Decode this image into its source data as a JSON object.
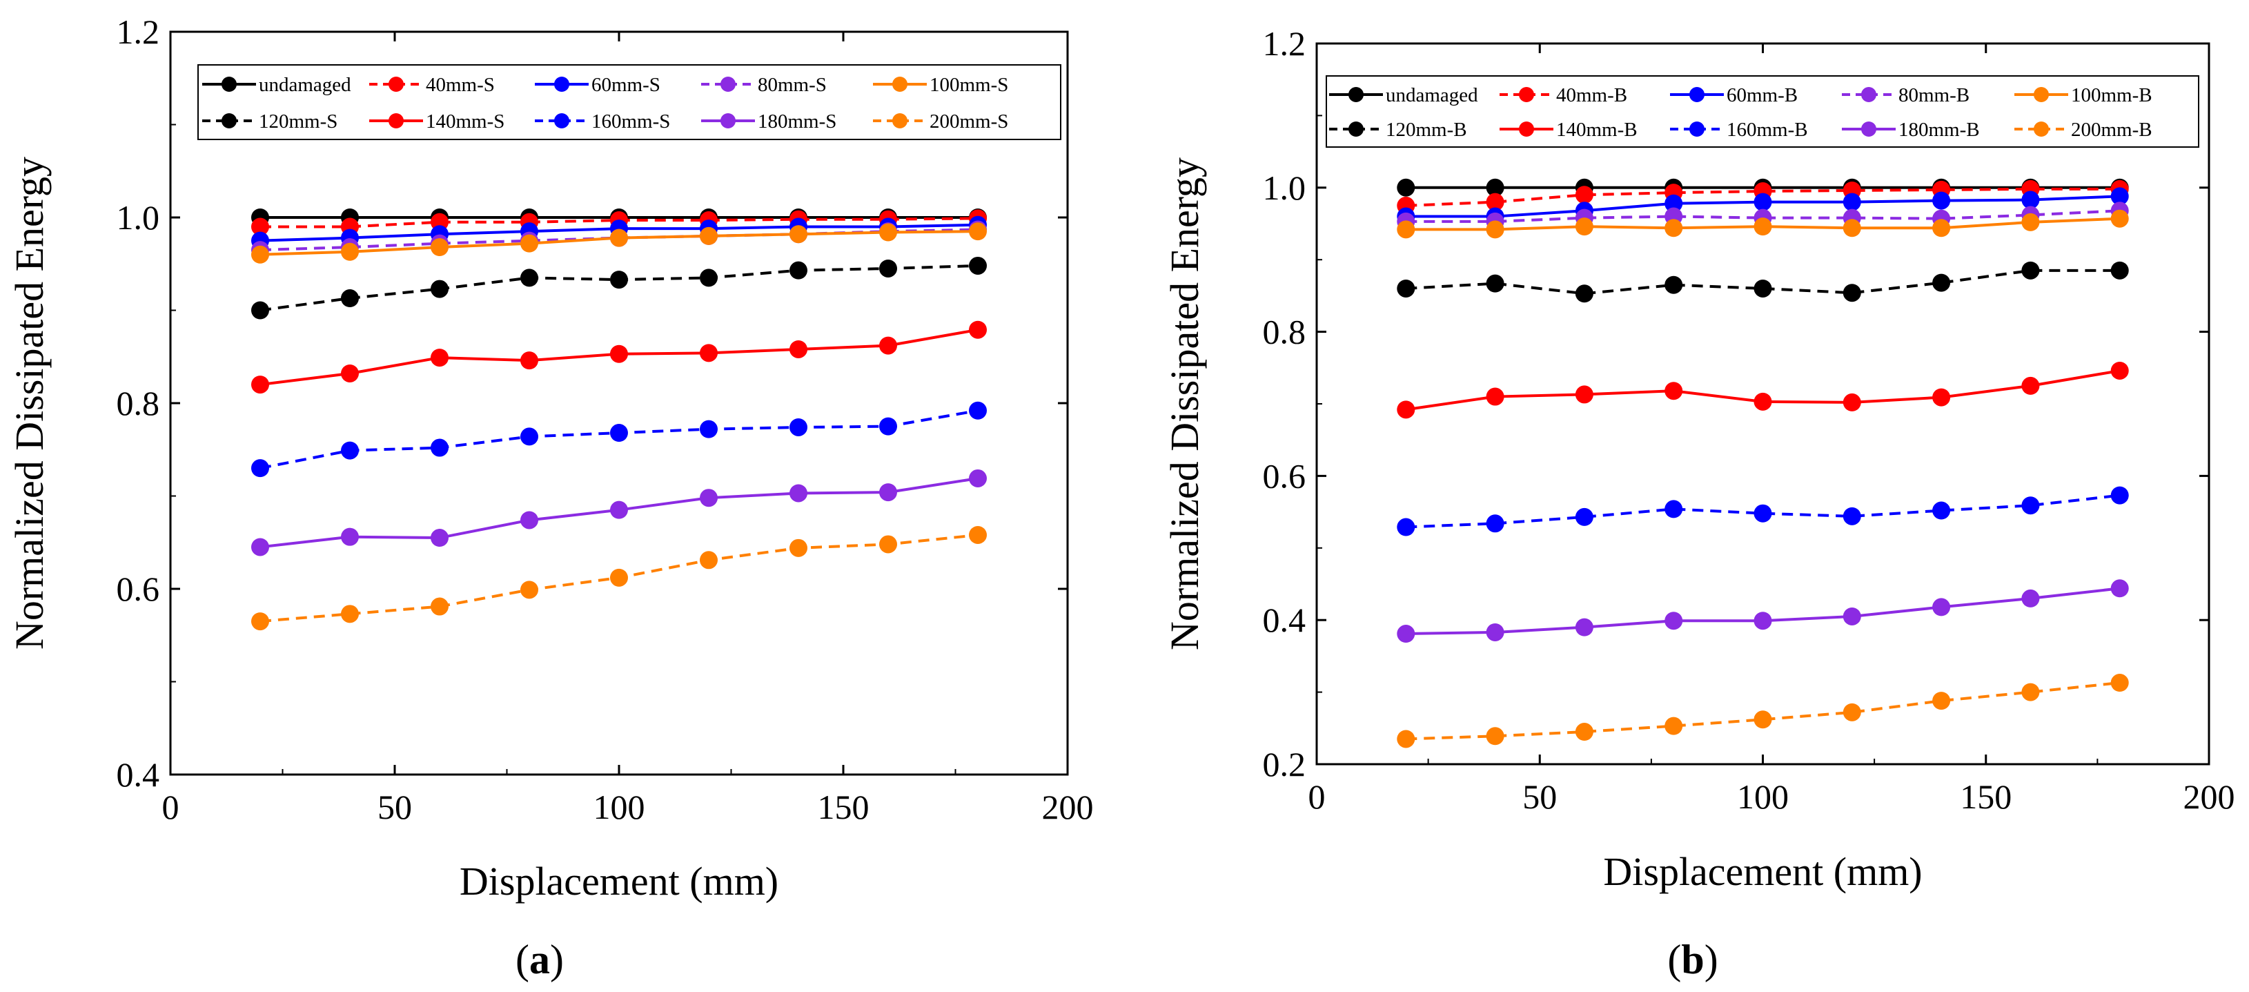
{
  "chart_data": [
    {
      "type": "line",
      "panel_label": {
        "open": "(",
        "letter": "a",
        "close": ")"
      },
      "title": "",
      "xlabel": "Displacement (mm)",
      "ylabel": "Normalized Dissipated Energy",
      "xlim": [
        0,
        200
      ],
      "ylim": [
        0.4,
        1.2
      ],
      "x_tick_labels": [
        "0",
        "50",
        "100",
        "150",
        "200"
      ],
      "y_tick_labels": [
        "0.4",
        "0.6",
        "0.8",
        "1.0",
        "1.2"
      ],
      "x": [
        20,
        40,
        60,
        80,
        100,
        120,
        140,
        160,
        180
      ],
      "legend_position": "top",
      "series": [
        {
          "name": "undamaged",
          "color": "#000000",
          "dash": "solid",
          "values": [
            1.0,
            1.0,
            1.0,
            1.0,
            1.0,
            1.0,
            1.0,
            1.0,
            1.0
          ]
        },
        {
          "name": "40mm-S",
          "color": "#ff0000",
          "dash": "dashed",
          "values": [
            0.99,
            0.99,
            0.995,
            0.995,
            0.997,
            0.997,
            0.998,
            0.998,
            0.999
          ]
        },
        {
          "name": "60mm-S",
          "color": "#0000ff",
          "dash": "solid",
          "values": [
            0.975,
            0.978,
            0.982,
            0.985,
            0.988,
            0.988,
            0.99,
            0.99,
            0.992
          ]
        },
        {
          "name": "80mm-S",
          "color": "#8b2be2",
          "dash": "dashed",
          "values": [
            0.965,
            0.968,
            0.972,
            0.975,
            0.978,
            0.98,
            0.982,
            0.985,
            0.987
          ]
        },
        {
          "name": "100mm-S",
          "color": "#ff8000",
          "dash": "solid",
          "values": [
            0.96,
            0.963,
            0.968,
            0.972,
            0.978,
            0.98,
            0.982,
            0.984,
            0.985
          ]
        },
        {
          "name": "120mm-S",
          "color": "#000000",
          "dash": "dashed",
          "values": [
            0.9,
            0.913,
            0.923,
            0.935,
            0.933,
            0.935,
            0.943,
            0.945,
            0.948
          ]
        },
        {
          "name": "140mm-S",
          "color": "#ff0000",
          "dash": "solid",
          "values": [
            0.82,
            0.832,
            0.849,
            0.846,
            0.853,
            0.854,
            0.858,
            0.862,
            0.879
          ]
        },
        {
          "name": "160mm-S",
          "color": "#0000ff",
          "dash": "dashed",
          "values": [
            0.73,
            0.749,
            0.752,
            0.764,
            0.768,
            0.772,
            0.774,
            0.775,
            0.792
          ]
        },
        {
          "name": "180mm-S",
          "color": "#8b2be2",
          "dash": "solid",
          "values": [
            0.645,
            0.656,
            0.655,
            0.674,
            0.685,
            0.698,
            0.703,
            0.704,
            0.719
          ]
        },
        {
          "name": "200mm-S",
          "color": "#ff8000",
          "dash": "dashed",
          "values": [
            0.565,
            0.573,
            0.581,
            0.599,
            0.612,
            0.631,
            0.644,
            0.648,
            0.658
          ]
        }
      ]
    },
    {
      "type": "line",
      "panel_label": {
        "open": "(",
        "letter": "b",
        "close": ")"
      },
      "title": "",
      "xlabel": "Displacement (mm)",
      "ylabel": "Normalized Dissipated Energy",
      "xlim": [
        0,
        200
      ],
      "ylim": [
        0.2,
        1.2
      ],
      "x_tick_labels": [
        "0",
        "50",
        "100",
        "150",
        "200"
      ],
      "y_tick_labels": [
        "0.2",
        "0.4",
        "0.6",
        "0.8",
        "1.0",
        "1.2"
      ],
      "x": [
        20,
        40,
        60,
        80,
        100,
        120,
        140,
        160,
        180
      ],
      "legend_position": "top",
      "series": [
        {
          "name": "undamaged",
          "color": "#000000",
          "dash": "solid",
          "values": [
            1.0,
            1.0,
            1.0,
            1.0,
            1.0,
            1.0,
            1.0,
            1.0,
            1.0
          ]
        },
        {
          "name": "40mm-B",
          "color": "#ff0000",
          "dash": "dashed",
          "values": [
            0.975,
            0.98,
            0.99,
            0.993,
            0.995,
            0.996,
            0.997,
            0.998,
            0.998
          ]
        },
        {
          "name": "60mm-B",
          "color": "#0000ff",
          "dash": "solid",
          "values": [
            0.96,
            0.96,
            0.968,
            0.978,
            0.98,
            0.98,
            0.982,
            0.983,
            0.988
          ]
        },
        {
          "name": "80mm-B",
          "color": "#8b2be2",
          "dash": "dashed",
          "values": [
            0.953,
            0.953,
            0.958,
            0.96,
            0.958,
            0.958,
            0.957,
            0.962,
            0.968
          ]
        },
        {
          "name": "100mm-B",
          "color": "#ff8000",
          "dash": "solid",
          "values": [
            0.942,
            0.942,
            0.946,
            0.944,
            0.946,
            0.944,
            0.944,
            0.952,
            0.957
          ]
        },
        {
          "name": "120mm-B",
          "color": "#000000",
          "dash": "dashed",
          "values": [
            0.86,
            0.867,
            0.853,
            0.865,
            0.86,
            0.854,
            0.868,
            0.885,
            0.885
          ]
        },
        {
          "name": "140mm-B",
          "color": "#ff0000",
          "dash": "solid",
          "values": [
            0.692,
            0.71,
            0.713,
            0.718,
            0.703,
            0.702,
            0.709,
            0.725,
            0.746
          ]
        },
        {
          "name": "160mm-B",
          "color": "#0000ff",
          "dash": "dashed",
          "values": [
            0.529,
            0.534,
            0.543,
            0.554,
            0.548,
            0.544,
            0.552,
            0.559,
            0.573
          ]
        },
        {
          "name": "180mm-B",
          "color": "#8b2be2",
          "dash": "solid",
          "values": [
            0.381,
            0.383,
            0.39,
            0.399,
            0.399,
            0.405,
            0.418,
            0.43,
            0.444
          ]
        },
        {
          "name": "200mm-B",
          "color": "#ff8000",
          "dash": "dashed",
          "values": [
            0.235,
            0.239,
            0.245,
            0.253,
            0.262,
            0.272,
            0.288,
            0.3,
            0.313
          ]
        }
      ]
    }
  ]
}
